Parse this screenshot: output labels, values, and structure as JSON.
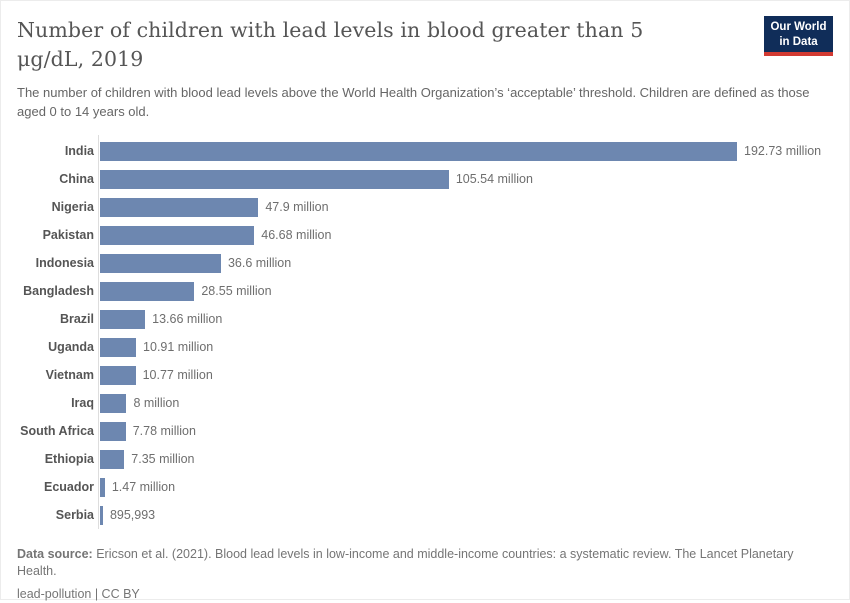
{
  "header": {
    "title": "Number of children with lead levels in blood greater than 5 μg/dL, 2019",
    "subtitle": "The number of children with blood lead levels above the World Health Organization’s ‘acceptable’ threshold. Children are defined as those aged 0 to 14 years old.",
    "logo": {
      "line1": "Our World",
      "line2": "in Data"
    }
  },
  "chart_data": {
    "type": "bar",
    "orientation": "horizontal",
    "title": "Number of children with lead levels in blood greater than 5 μg/dL, 2019",
    "categories": [
      "India",
      "China",
      "Nigeria",
      "Pakistan",
      "Indonesia",
      "Bangladesh",
      "Brazil",
      "Uganda",
      "Vietnam",
      "Iraq",
      "South Africa",
      "Ethiopia",
      "Ecuador",
      "Serbia"
    ],
    "values": [
      192730000,
      105540000,
      47900000,
      46680000,
      36600000,
      28550000,
      13660000,
      10910000,
      10770000,
      8000000,
      7780000,
      7350000,
      1470000,
      895993
    ],
    "value_labels": [
      "192.73 million",
      "105.54 million",
      "47.9 million",
      "46.68 million",
      "36.6 million",
      "28.55 million",
      "13.66 million",
      "10.91 million",
      "10.77 million",
      "8 million",
      "7.78 million",
      "7.35 million",
      "1.47 million",
      "895,993"
    ],
    "xlim": [
      0,
      192730000
    ],
    "grid": false,
    "legend": "none",
    "bar_color": "#6d87b0",
    "axis_line_color": "#dddddd"
  },
  "footer": {
    "datasource_label": "Data source:",
    "datasource_text": " Ericson et al. (2021). Blood lead levels in low-income and middle-income countries: a systematic review. The Lancet Planetary Health.",
    "note": "lead-pollution | CC BY"
  }
}
